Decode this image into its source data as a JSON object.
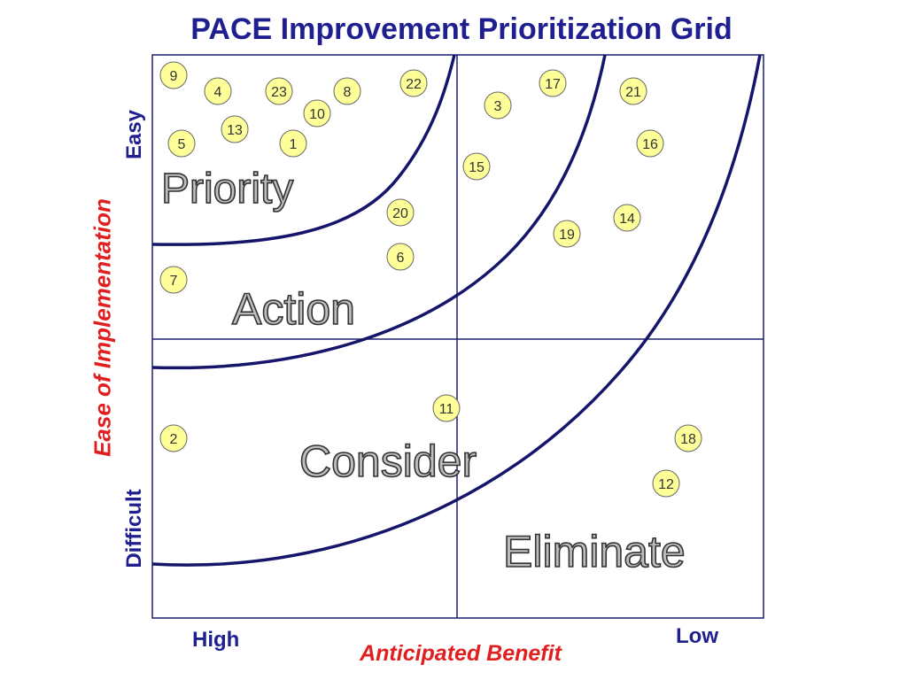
{
  "title": "PACE Improvement Prioritization Grid",
  "x_axis": {
    "label": "Anticipated Benefit",
    "high": "High",
    "low": "Low"
  },
  "y_axis": {
    "label": "Ease of Implementation",
    "easy": "Easy",
    "difficult": "Difficult"
  },
  "colors": {
    "title": "#1f1f8f",
    "axis_label": "#e02020",
    "grid": "#1f1f6f",
    "curve": "#15156b",
    "item_fill": "#ffff99"
  },
  "regions": [
    {
      "name": "Priority"
    },
    {
      "name": "Action"
    },
    {
      "name": "Consider"
    },
    {
      "name": "Eliminate"
    }
  ],
  "items": [
    "9",
    "4",
    "23",
    "8",
    "22",
    "17",
    "21",
    "3",
    "10",
    "13",
    "5",
    "1",
    "16",
    "15",
    "20",
    "14",
    "19",
    "6",
    "7",
    "11",
    "2",
    "18",
    "12"
  ]
}
